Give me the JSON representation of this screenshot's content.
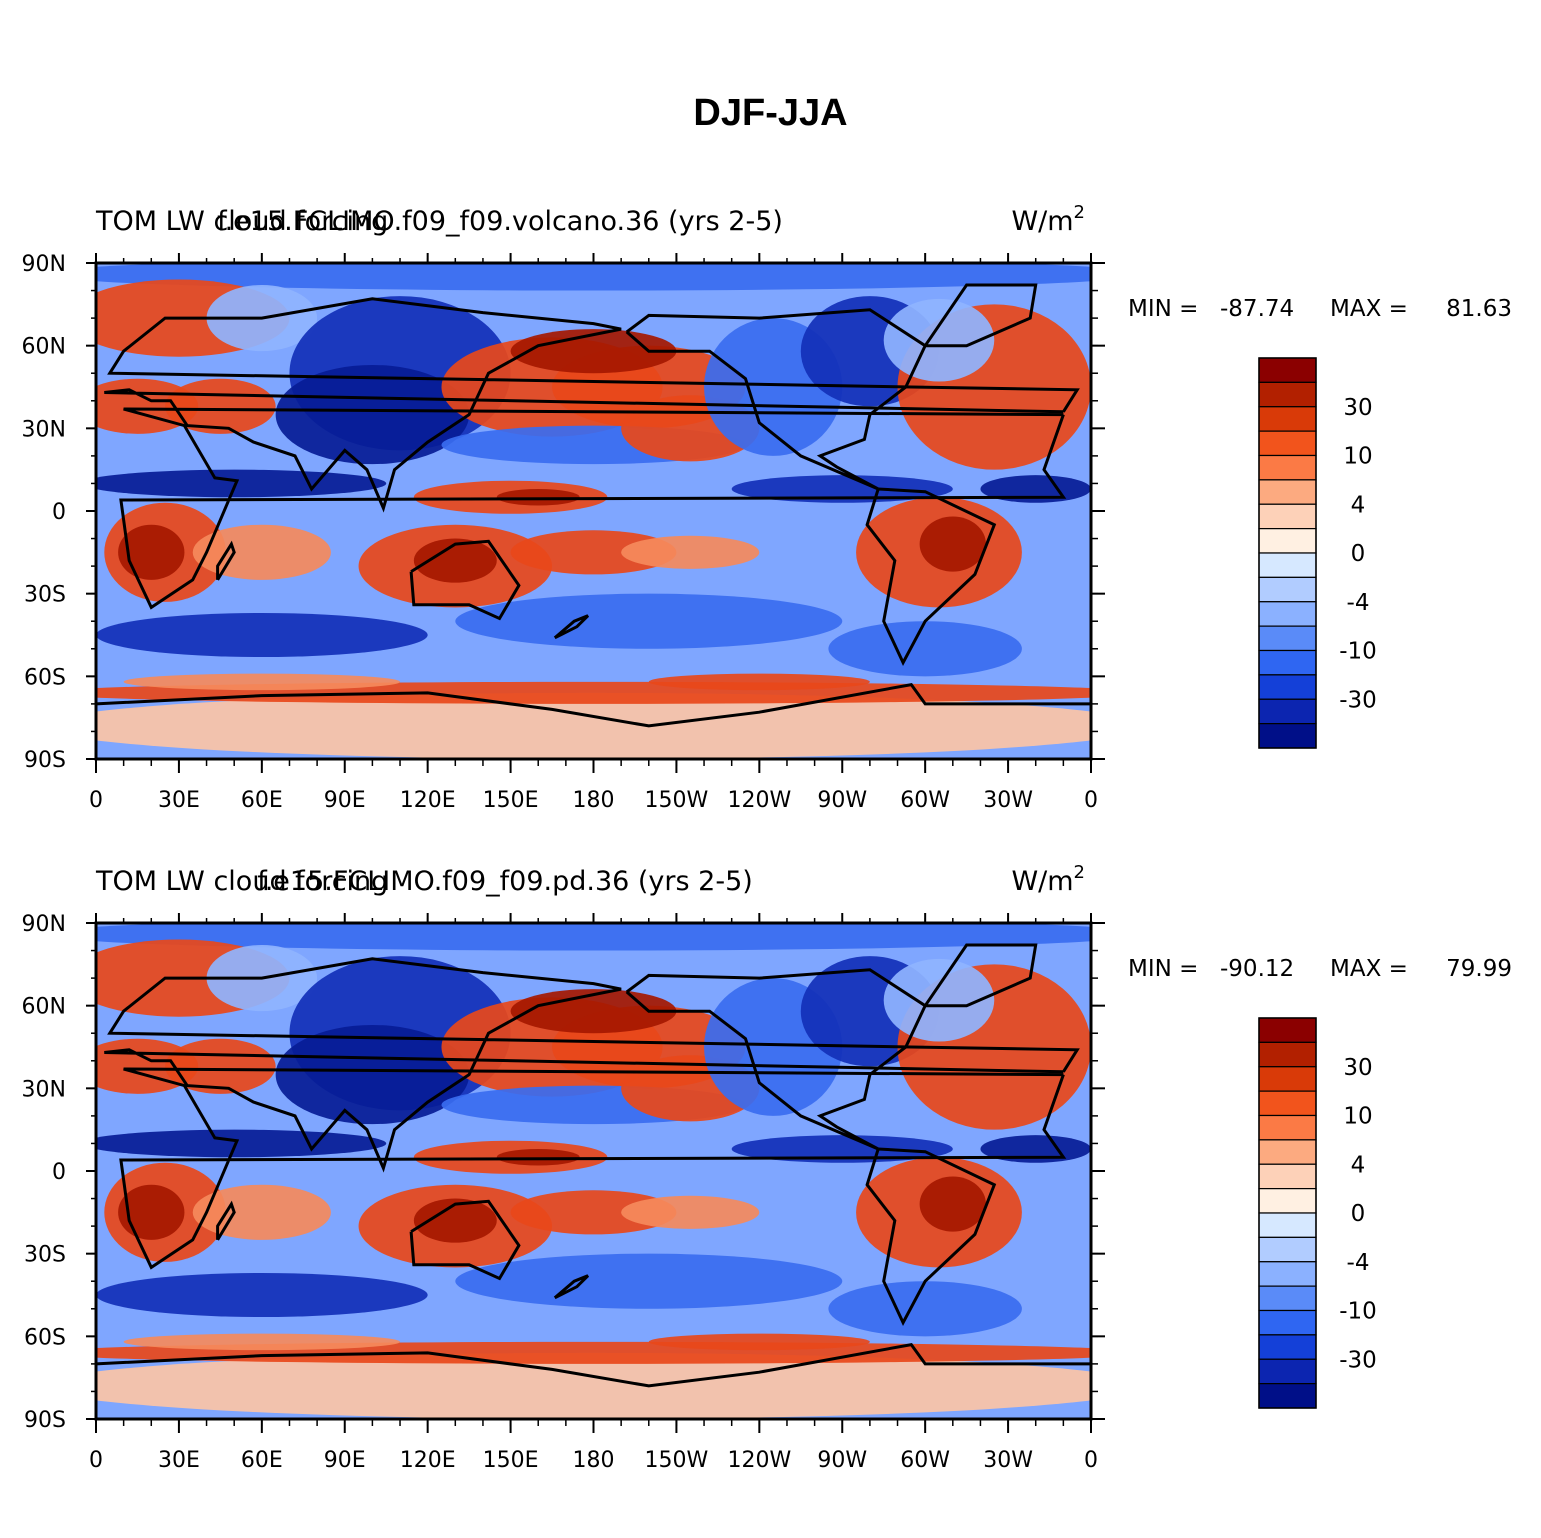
{
  "title": "DJF-JJA",
  "panels": [
    {
      "left_label": "TOM LW cloud forcing",
      "center_label": "f.e15.FCLIMO.f09_f09.volcano.36 (yrs 2-5)",
      "units": "W/m",
      "units_superscript": "2",
      "min_label": "MIN =",
      "min_value": "-87.74",
      "max_label": "MAX =",
      "max_value": "81.63"
    },
    {
      "left_label": "TOM LW cloud forcing",
      "center_label": "f.e15.FCLIMO.f09_f09.pd.36 (yrs 2-5)",
      "units": "W/m",
      "units_superscript": "2",
      "min_label": "MIN =",
      "min_value": "-90.12",
      "max_label": "MAX =",
      "max_value": "79.99"
    }
  ],
  "x_ticks": [
    "0",
    "30E",
    "60E",
    "90E",
    "120E",
    "150E",
    "180",
    "150W",
    "120W",
    "90W",
    "60W",
    "30W",
    "0"
  ],
  "y_ticks": [
    "90N",
    "60N",
    "30N",
    "0",
    "30S",
    "60S",
    "90S"
  ],
  "colorbar": {
    "colors": [
      "#8b0000",
      "#b22000",
      "#d93a08",
      "#f2541c",
      "#fb7a45",
      "#fcaa80",
      "#fdd1b8",
      "#fff0e2",
      "#d6e8ff",
      "#b1ccff",
      "#8bb1ff",
      "#5a8bf8",
      "#2f66f2",
      "#1440d8",
      "#0c25b0",
      "#000f88"
    ],
    "labels": [
      "30",
      "10",
      "4",
      "0",
      "-4",
      "-10",
      "-30"
    ]
  },
  "map_colors": {
    "strong_pos": "#a51800",
    "pos": "#e8481a",
    "mid_pos": "#f58a5c",
    "weak_pos": "#fcc4a6",
    "near_zero": "#dfe9ff",
    "weak_neg": "#8fb4ff",
    "neg": "#3a6cf0",
    "strong_neg": "#1230b8",
    "very_strong_neg": "#061c96"
  }
}
